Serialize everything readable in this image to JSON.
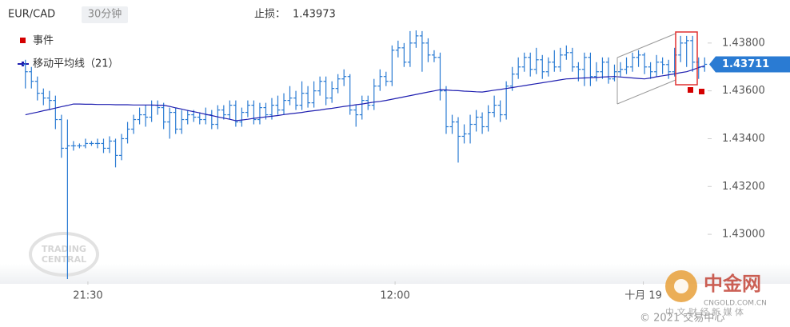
{
  "chart_data": {
    "type": "ohlc",
    "title": "EUR/CAD",
    "interval": "30分钟",
    "stop_loss_label": "止损：",
    "stop_loss": 1.43973,
    "color": "#2a7bd3",
    "last_price_color": "#2a7bd3",
    "event_legend": {
      "name": "事件",
      "color": "#d40000"
    },
    "xlim": [
      -0.5,
      113.5
    ],
    "xticks": [
      {
        "value": 10.4,
        "label": "21:30"
      },
      {
        "value": 61.5,
        "label": "12:00"
      },
      {
        "value": 102.8,
        "label": "十月 19"
      }
    ],
    "ylim": [
      1.42803,
      1.43863
    ],
    "yticks": [
      {
        "value": 1.43,
        "label": "1.43000"
      },
      {
        "value": 1.432,
        "label": "1.43200"
      },
      {
        "value": 1.434,
        "label": "1.43400"
      },
      {
        "value": 1.436,
        "label": "1.43600"
      },
      {
        "value": 1.438,
        "label": "1.43800"
      }
    ],
    "open": [
      1.4371,
      1.4368,
      1.4364,
      1.4359,
      1.4357,
      1.4356,
      1.4348,
      1.4336,
      1.4337,
      1.4337,
      1.4337,
      1.4338,
      1.4338,
      1.4338,
      1.4336,
      1.4339,
      1.4333,
      1.434,
      1.4344,
      1.4348,
      1.435,
      1.4349,
      1.4354,
      1.4353,
      1.4347,
      1.4351,
      1.4344,
      1.4348,
      1.435,
      1.4349,
      1.4348,
      1.435,
      1.4346,
      1.4352,
      1.435,
      1.4354,
      1.4347,
      1.4351,
      1.4354,
      1.4348,
      1.4353,
      1.435,
      1.4354,
      1.4352,
      1.4356,
      1.4357,
      1.4354,
      1.4359,
      1.4355,
      1.436,
      1.4364,
      1.4357,
      1.4361,
      1.4365,
      1.4366,
      1.4352,
      1.435,
      1.4356,
      1.4354,
      1.4362,
      1.4366,
      1.4364,
      1.4377,
      1.4378,
      1.4372,
      1.438,
      1.4383,
      1.438,
      1.4375,
      1.4374,
      1.436,
      1.4345,
      1.4347,
      1.4341,
      1.4342,
      1.4346,
      1.4349,
      1.4345,
      1.4351,
      1.4354,
      1.435,
      1.4362,
      1.4367,
      1.437,
      1.4374,
      1.4369,
      1.4373,
      1.4368,
      1.4372,
      1.437,
      1.4375,
      1.4376,
      1.437,
      1.4369,
      1.4374,
      1.4366,
      1.4368,
      1.4372,
      1.4365,
      1.4368,
      1.4369,
      1.437,
      1.4374,
      1.4375,
      1.437,
      1.4368,
      1.4372,
      1.4371,
      1.4368,
      1.4375,
      1.438,
      1.4381,
      1.4372,
      1.437
    ],
    "high": [
      1.4373,
      1.437,
      1.4366,
      1.4361,
      1.436,
      1.4358,
      1.435,
      1.4348,
      1.4339,
      1.4338,
      1.434,
      1.4339,
      1.434,
      1.434,
      1.4341,
      1.434,
      1.4342,
      1.4347,
      1.435,
      1.4353,
      1.4354,
      1.4356,
      1.4356,
      1.4355,
      1.4353,
      1.4353,
      1.4352,
      1.4352,
      1.4352,
      1.4351,
      1.4353,
      1.4352,
      1.4354,
      1.4354,
      1.4356,
      1.4356,
      1.4353,
      1.4356,
      1.4356,
      1.4355,
      1.4355,
      1.4357,
      1.4358,
      1.4359,
      1.4362,
      1.436,
      1.4364,
      1.4362,
      1.4364,
      1.4366,
      1.4366,
      1.4364,
      1.4367,
      1.4369,
      1.4367,
      1.4354,
      1.4358,
      1.4358,
      1.4365,
      1.4369,
      1.4368,
      1.4379,
      1.4381,
      1.438,
      1.4385,
      1.43853,
      1.4385,
      1.4382,
      1.4377,
      1.4376,
      1.4362,
      1.435,
      1.4349,
      1.4346,
      1.435,
      1.4352,
      1.4351,
      1.4354,
      1.4358,
      1.4356,
      1.4364,
      1.437,
      1.4374,
      1.4376,
      1.4376,
      1.4378,
      1.4375,
      1.4374,
      1.4377,
      1.4378,
      1.4379,
      1.4378,
      1.4372,
      1.4376,
      1.4376,
      1.4372,
      1.4374,
      1.4374,
      1.4371,
      1.4372,
      1.4374,
      1.4376,
      1.4377,
      1.4376,
      1.4372,
      1.4375,
      1.4374,
      1.4373,
      1.4378,
      1.4383,
      1.4383,
      1.4383,
      1.4374,
      1.4374
    ],
    "low": [
      1.4361,
      1.4361,
      1.4356,
      1.4354,
      1.4352,
      1.4344,
      1.4332,
      1.42813,
      1.4335,
      1.4336,
      1.4336,
      1.4337,
      1.4336,
      1.4334,
      1.4334,
      1.4328,
      1.4331,
      1.4338,
      1.4342,
      1.4346,
      1.4345,
      1.4347,
      1.435,
      1.4344,
      1.434,
      1.4342,
      1.4342,
      1.4346,
      1.4347,
      1.4346,
      1.4346,
      1.4344,
      1.4344,
      1.4348,
      1.4348,
      1.4345,
      1.4345,
      1.4349,
      1.4346,
      1.4346,
      1.4348,
      1.4348,
      1.435,
      1.435,
      1.4354,
      1.4352,
      1.4352,
      1.4353,
      1.4353,
      1.4358,
      1.4354,
      1.4355,
      1.4359,
      1.4362,
      1.435,
      1.4345,
      1.4348,
      1.4352,
      1.4352,
      1.436,
      1.4362,
      1.4362,
      1.4374,
      1.437,
      1.437,
      1.4378,
      1.4368,
      1.4372,
      1.4372,
      1.4356,
      1.4342,
      1.4342,
      1.433,
      1.4338,
      1.4338,
      1.4343,
      1.4342,
      1.4343,
      1.4349,
      1.4347,
      1.4348,
      1.436,
      1.4365,
      1.4368,
      1.4366,
      1.4367,
      1.4365,
      1.4366,
      1.4368,
      1.4368,
      1.4373,
      1.4368,
      1.4364,
      1.4362,
      1.4362,
      1.4364,
      1.4365,
      1.4363,
      1.4364,
      1.4366,
      1.4367,
      1.4368,
      1.437,
      1.4367,
      1.4365,
      1.4366,
      1.4367,
      1.4365,
      1.4366,
      1.4372,
      1.437,
      1.4368,
      1.4365,
      1.4368
    ],
    "close": [
      1.4368,
      1.4364,
      1.4359,
      1.4357,
      1.4356,
      1.4348,
      1.4336,
      1.4337,
      1.4337,
      1.4337,
      1.4338,
      1.4338,
      1.4338,
      1.4336,
      1.4339,
      1.4333,
      1.434,
      1.4344,
      1.4348,
      1.435,
      1.4349,
      1.4354,
      1.4353,
      1.4347,
      1.4351,
      1.4344,
      1.4348,
      1.435,
      1.4349,
      1.4348,
      1.435,
      1.4346,
      1.4352,
      1.435,
      1.4354,
      1.4347,
      1.4351,
      1.4354,
      1.4348,
      1.4353,
      1.435,
      1.4354,
      1.4352,
      1.4356,
      1.4357,
      1.4354,
      1.4359,
      1.4355,
      1.436,
      1.4364,
      1.4357,
      1.4361,
      1.4365,
      1.4366,
      1.4352,
      1.435,
      1.4356,
      1.4354,
      1.4362,
      1.4366,
      1.4364,
      1.4377,
      1.4378,
      1.4372,
      1.438,
      1.4383,
      1.438,
      1.4375,
      1.4374,
      1.436,
      1.4345,
      1.4347,
      1.4341,
      1.4342,
      1.4346,
      1.4349,
      1.4345,
      1.4351,
      1.4354,
      1.435,
      1.4362,
      1.4367,
      1.437,
      1.4374,
      1.4369,
      1.4373,
      1.4368,
      1.4372,
      1.437,
      1.4375,
      1.4376,
      1.437,
      1.4369,
      1.4374,
      1.4366,
      1.4368,
      1.4372,
      1.4365,
      1.4368,
      1.4369,
      1.437,
      1.4374,
      1.4375,
      1.437,
      1.4368,
      1.4372,
      1.4371,
      1.4368,
      1.4375,
      1.438,
      1.4381,
      1.4372,
      1.437,
      1.43711
    ],
    "overlays": [
      {
        "name": "移动平均线（21）",
        "color": "#1f1fb0",
        "values": [
          1.435,
          1.43506,
          1.43511,
          1.43517,
          1.43522,
          1.43528,
          1.43534,
          1.43539,
          1.43545,
          1.43545,
          1.43544,
          1.43544,
          1.43543,
          1.43543,
          1.43543,
          1.43542,
          1.43542,
          1.43542,
          1.43541,
          1.43541,
          1.43541,
          1.43541,
          1.4354,
          1.4354,
          1.43535,
          1.43529,
          1.43524,
          1.43518,
          1.43513,
          1.43508,
          1.43502,
          1.43497,
          1.43491,
          1.43486,
          1.43481,
          1.43475,
          1.43478,
          1.43481,
          1.43485,
          1.43488,
          1.43491,
          1.43494,
          1.43497,
          1.43501,
          1.43504,
          1.43507,
          1.4351,
          1.43514,
          1.43517,
          1.4352,
          1.43524,
          1.43527,
          1.43531,
          1.43535,
          1.43538,
          1.43542,
          1.43545,
          1.43549,
          1.43553,
          1.43556,
          1.4356,
          1.43565,
          1.4357,
          1.43575,
          1.4358,
          1.43585,
          1.4359,
          1.43595,
          1.436,
          1.43605,
          1.43604,
          1.43602,
          1.43601,
          1.43599,
          1.43598,
          1.43596,
          1.43595,
          1.43599,
          1.43603,
          1.43606,
          1.4361,
          1.43614,
          1.43618,
          1.43622,
          1.43626,
          1.4363,
          1.43634,
          1.43638,
          1.43642,
          1.43646,
          1.4365,
          1.43651,
          1.43653,
          1.43654,
          1.43655,
          1.43656,
          1.43658,
          1.43659,
          1.4366,
          1.43658,
          1.43656,
          1.43654,
          1.43652,
          1.4365,
          1.43654,
          1.43659,
          1.43663,
          1.43667,
          1.43671,
          1.43676,
          1.4368,
          1.43688,
          1.43697,
          1.43705
        ]
      }
    ]
  },
  "watermark": {
    "tc_line1": "TRADING",
    "tc_line2": "CENTRAL",
    "brand": "中金网",
    "domain": "CNGOLD.COM.CN",
    "tagline": "中 文 财 经 新 媒 体",
    "copyright": "© 2021 交易中心"
  }
}
